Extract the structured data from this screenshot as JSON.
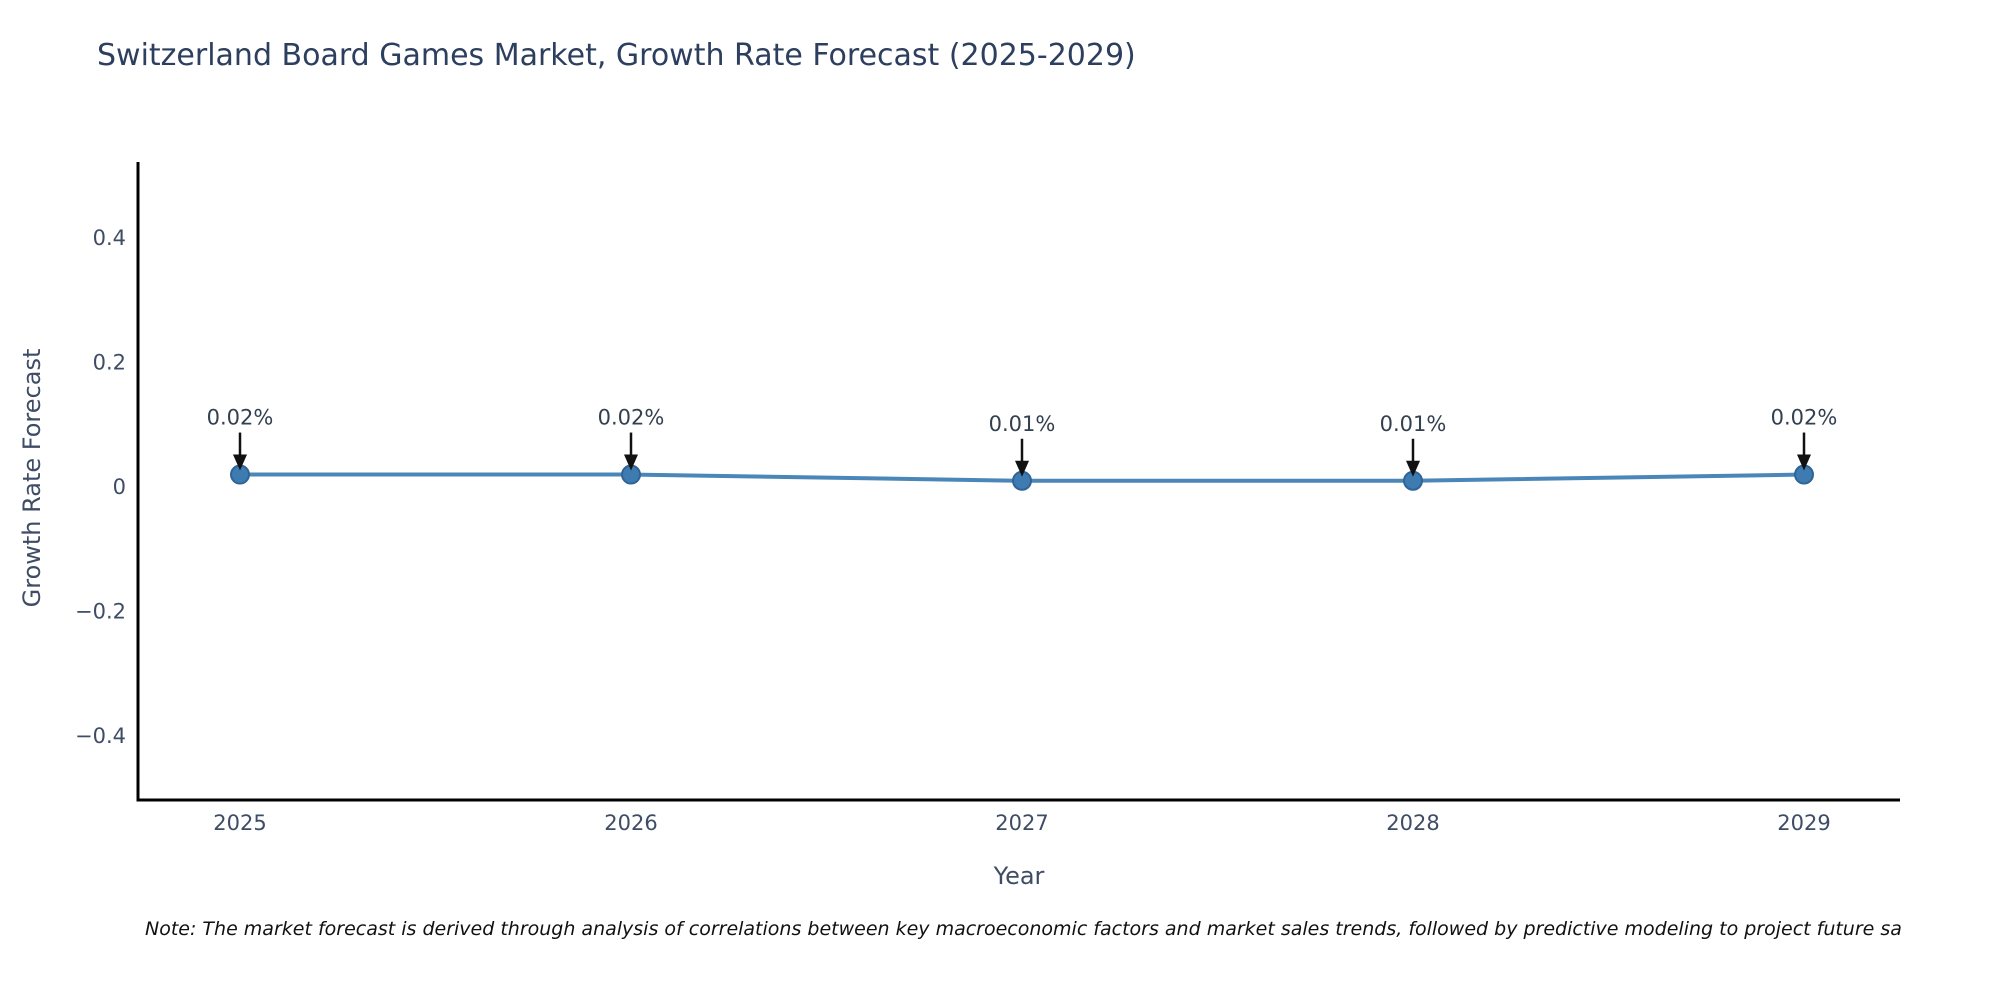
{
  "title": "Switzerland Board Games Market, Growth Rate Forecast (2025-2029)",
  "note": "Note: The market forecast is derived through analysis of correlations between key macroeconomic factors and market sales trends, followed by predictive modeling to project future sa",
  "chart_data": {
    "type": "line",
    "title": "Switzerland Board Games Market, Growth Rate Forecast (2025-2029)",
    "xlabel": "Year",
    "ylabel": "Growth Rate Forecast",
    "categories": [
      "2025",
      "2026",
      "2027",
      "2028",
      "2029"
    ],
    "series": [
      {
        "name": "Growth Rate Forecast",
        "values": [
          0.02,
          0.02,
          0.01,
          0.01,
          0.02
        ]
      }
    ],
    "point_labels": [
      "0.02%",
      "0.02%",
      "0.01%",
      "0.01%",
      "0.02%"
    ],
    "y_ticks": [
      0.4,
      0.2,
      0,
      -0.2,
      -0.4
    ],
    "y_tick_labels": [
      "0.4",
      "0.2",
      "0",
      "−0.2",
      "−0.4"
    ],
    "ylim": [
      -0.5,
      0.52
    ],
    "grid": false,
    "legend_position": "none",
    "annotation_arrows": true,
    "colors": {
      "line": "#4a86b8",
      "marker_fill": "#3e7bb1",
      "marker_edge": "#2f6497",
      "arrow": "#111111",
      "axis_line": "#000000",
      "title_text": "#2d3f5e",
      "tick_text": "#3e4c66",
      "annotation_text": "#33404f",
      "note_text": "#111111"
    }
  }
}
